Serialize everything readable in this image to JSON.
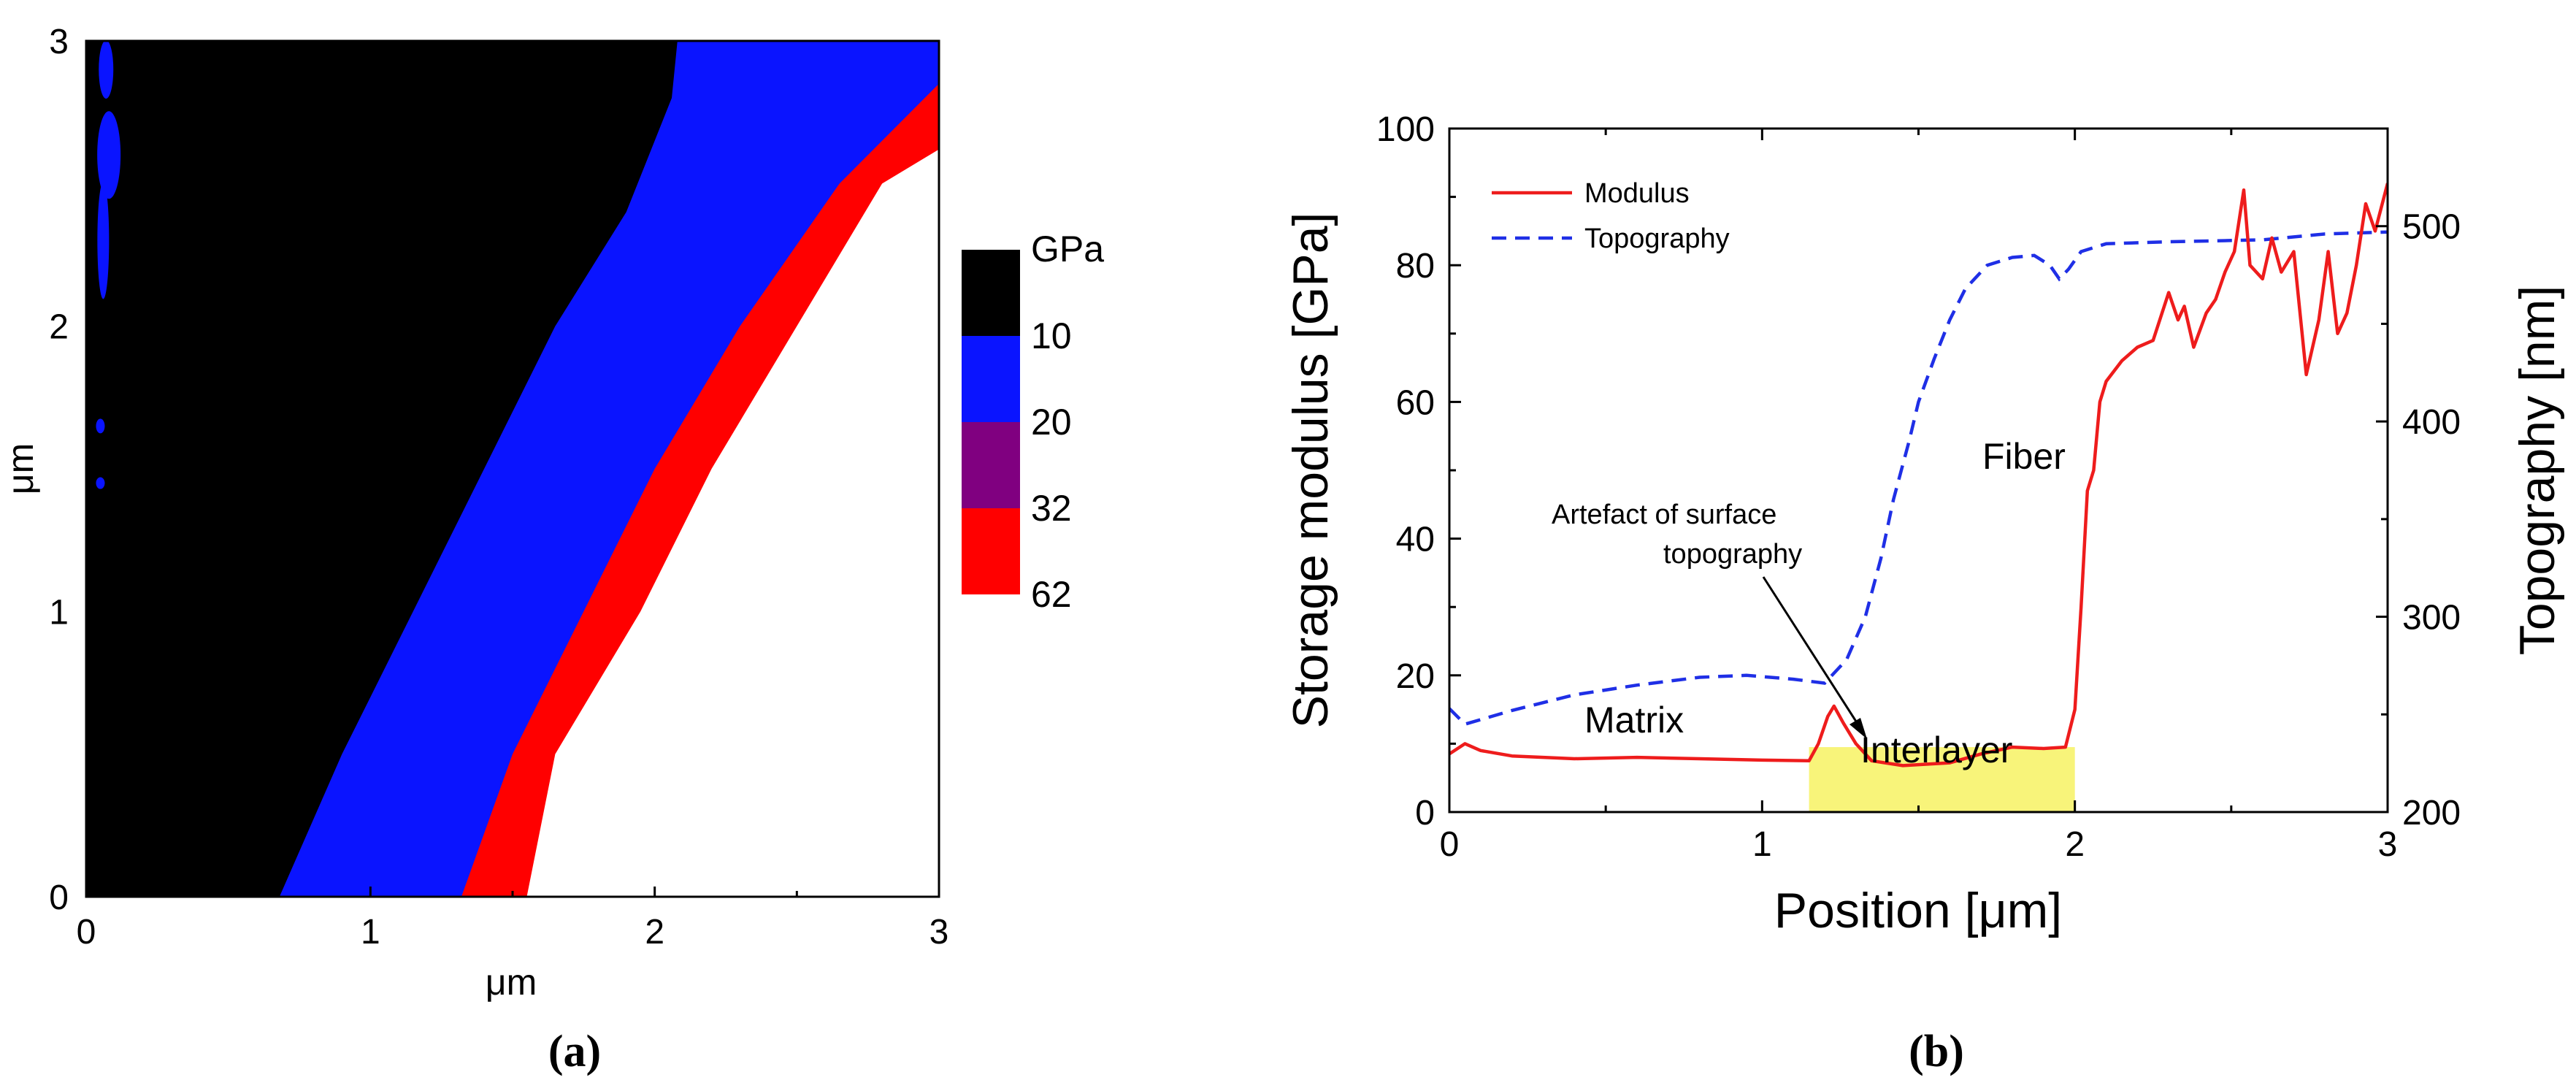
{
  "chart_data": [
    {
      "panel": "a",
      "type": "heatmap",
      "caption": "(a)",
      "x_ticks": [
        "0",
        "1",
        "2",
        "3"
      ],
      "y_ticks": [
        "0",
        "1",
        "2",
        "3"
      ],
      "x_range": [
        0,
        3
      ],
      "y_range": [
        0,
        3
      ],
      "xlabel": "μm",
      "ylabel": "μm",
      "colorbar": {
        "unit": "GPa",
        "tick_labels": [
          "10",
          "20",
          "32",
          "62"
        ],
        "bands": [
          {
            "color": "#000000",
            "range": [
              0,
              10
            ]
          },
          {
            "color": "#0a14ff",
            "range": [
              10,
              20
            ]
          },
          {
            "color": "#800080",
            "range": [
              20,
              32
            ]
          },
          {
            "color": "#ff0000",
            "range": [
              32,
              62
            ]
          }
        ]
      },
      "regions": [
        {
          "name": "black-matrix",
          "color": "#000000",
          "boundary_right": [
            [
              0.68,
              0
            ],
            [
              0.9,
              0.5
            ],
            [
              1.15,
              1.0
            ],
            [
              1.4,
              1.5
            ],
            [
              1.65,
              2.0
            ],
            [
              1.9,
              2.4
            ],
            [
              2.06,
              2.8
            ],
            [
              2.08,
              3.0
            ]
          ]
        },
        {
          "name": "blue-interlayer",
          "color": "#0a14ff",
          "boundary_right": [
            [
              1.32,
              0
            ],
            [
              1.5,
              0.5
            ],
            [
              1.75,
              1.0
            ],
            [
              2.0,
              1.5
            ],
            [
              2.3,
              2.0
            ],
            [
              2.65,
              2.5
            ],
            [
              3.0,
              2.85
            ]
          ]
        },
        {
          "name": "red-fiber-edge",
          "color": "#ff0000",
          "boundary_right": [
            [
              1.55,
              0
            ],
            [
              1.65,
              0.5
            ],
            [
              1.95,
              1.0
            ],
            [
              2.2,
              1.5
            ],
            [
              2.5,
              2.0
            ],
            [
              2.8,
              2.5
            ],
            [
              3.0,
              2.62
            ]
          ]
        }
      ]
    },
    {
      "panel": "b",
      "type": "line",
      "caption": "(b)",
      "xlabel": "Position [μm]",
      "ylabel": "Storage modulus [GPa]",
      "ylabel_right": "Topography [nm]",
      "xlim": [
        0,
        3
      ],
      "ylim": [
        0,
        100
      ],
      "ylim_right": [
        200,
        550
      ],
      "x_ticks": [
        "0",
        "1",
        "2",
        "3"
      ],
      "y_ticks": [
        "0",
        "20",
        "40",
        "60",
        "80",
        "100"
      ],
      "y_ticks_right": [
        "200",
        "300",
        "400",
        "500"
      ],
      "legend": [
        {
          "label": "Modulus",
          "color": "#ee1c1c",
          "style": "solid"
        },
        {
          "label": "Topography",
          "color": "#1f2fe6",
          "style": "dashed"
        }
      ],
      "series": [
        {
          "name": "Modulus",
          "axis": "left",
          "color": "#ee1c1c",
          "style": "solid",
          "points": [
            [
              0,
              8.5
            ],
            [
              0.05,
              10
            ],
            [
              0.1,
              9
            ],
            [
              0.2,
              8.2
            ],
            [
              0.4,
              7.8
            ],
            [
              0.6,
              8
            ],
            [
              0.8,
              7.8
            ],
            [
              1.0,
              7.6
            ],
            [
              1.15,
              7.5
            ],
            [
              1.18,
              10
            ],
            [
              1.21,
              14
            ],
            [
              1.23,
              15.5
            ],
            [
              1.26,
              13
            ],
            [
              1.3,
              10
            ],
            [
              1.35,
              7.5
            ],
            [
              1.45,
              6.8
            ],
            [
              1.6,
              7.2
            ],
            [
              1.7,
              8.5
            ],
            [
              1.8,
              9.5
            ],
            [
              1.9,
              9.3
            ],
            [
              1.97,
              9.5
            ],
            [
              2.0,
              15
            ],
            [
              2.02,
              30
            ],
            [
              2.04,
              47
            ],
            [
              2.06,
              50
            ],
            [
              2.08,
              60
            ],
            [
              2.1,
              63
            ],
            [
              2.15,
              66
            ],
            [
              2.2,
              68
            ],
            [
              2.25,
              69
            ],
            [
              2.3,
              76
            ],
            [
              2.33,
              72
            ],
            [
              2.35,
              74
            ],
            [
              2.38,
              68
            ],
            [
              2.42,
              73
            ],
            [
              2.45,
              75
            ],
            [
              2.48,
              79
            ],
            [
              2.51,
              82
            ],
            [
              2.54,
              91
            ],
            [
              2.56,
              80
            ],
            [
              2.6,
              78
            ],
            [
              2.63,
              84
            ],
            [
              2.66,
              79
            ],
            [
              2.7,
              82
            ],
            [
              2.74,
              64
            ],
            [
              2.78,
              72
            ],
            [
              2.81,
              82
            ],
            [
              2.84,
              70
            ],
            [
              2.87,
              73
            ],
            [
              2.9,
              80
            ],
            [
              2.93,
              89
            ],
            [
              2.96,
              85
            ],
            [
              3.0,
              92
            ]
          ]
        },
        {
          "name": "Topography",
          "axis": "right",
          "color": "#1f2fe6",
          "style": "dashed",
          "points": [
            [
              0,
              253
            ],
            [
              0.05,
              245
            ],
            [
              0.2,
              252
            ],
            [
              0.4,
              260
            ],
            [
              0.6,
              265
            ],
            [
              0.8,
              269
            ],
            [
              0.95,
              270
            ],
            [
              1.1,
              268
            ],
            [
              1.2,
              266
            ],
            [
              1.27,
              278
            ],
            [
              1.33,
              300
            ],
            [
              1.38,
              330
            ],
            [
              1.42,
              360
            ],
            [
              1.47,
              390
            ],
            [
              1.5,
              410
            ],
            [
              1.55,
              432
            ],
            [
              1.6,
              452
            ],
            [
              1.65,
              468
            ],
            [
              1.72,
              480
            ],
            [
              1.8,
              484
            ],
            [
              1.87,
              485
            ],
            [
              1.92,
              480
            ],
            [
              1.95,
              473
            ],
            [
              1.98,
              478
            ],
            [
              2.02,
              487
            ],
            [
              2.1,
              491
            ],
            [
              2.3,
              492
            ],
            [
              2.6,
              493
            ],
            [
              2.8,
              496
            ],
            [
              3.0,
              497
            ]
          ]
        }
      ],
      "highlight": {
        "x_range": [
          1.15,
          2.0
        ],
        "y_range": [
          0,
          9.5
        ],
        "color": "#f8f47a"
      },
      "annotations": [
        {
          "lines": [
            "Artefact of surface",
            "topography"
          ],
          "arrow_to": [
            1.22,
            15.5
          ]
        },
        {
          "text": "Matrix",
          "at": [
            0.4,
            14
          ]
        },
        {
          "text": "Interlayer",
          "at": [
            1.6,
            17.5
          ]
        },
        {
          "text": "Fiber",
          "at": [
            2.55,
            53
          ]
        }
      ]
    }
  ]
}
